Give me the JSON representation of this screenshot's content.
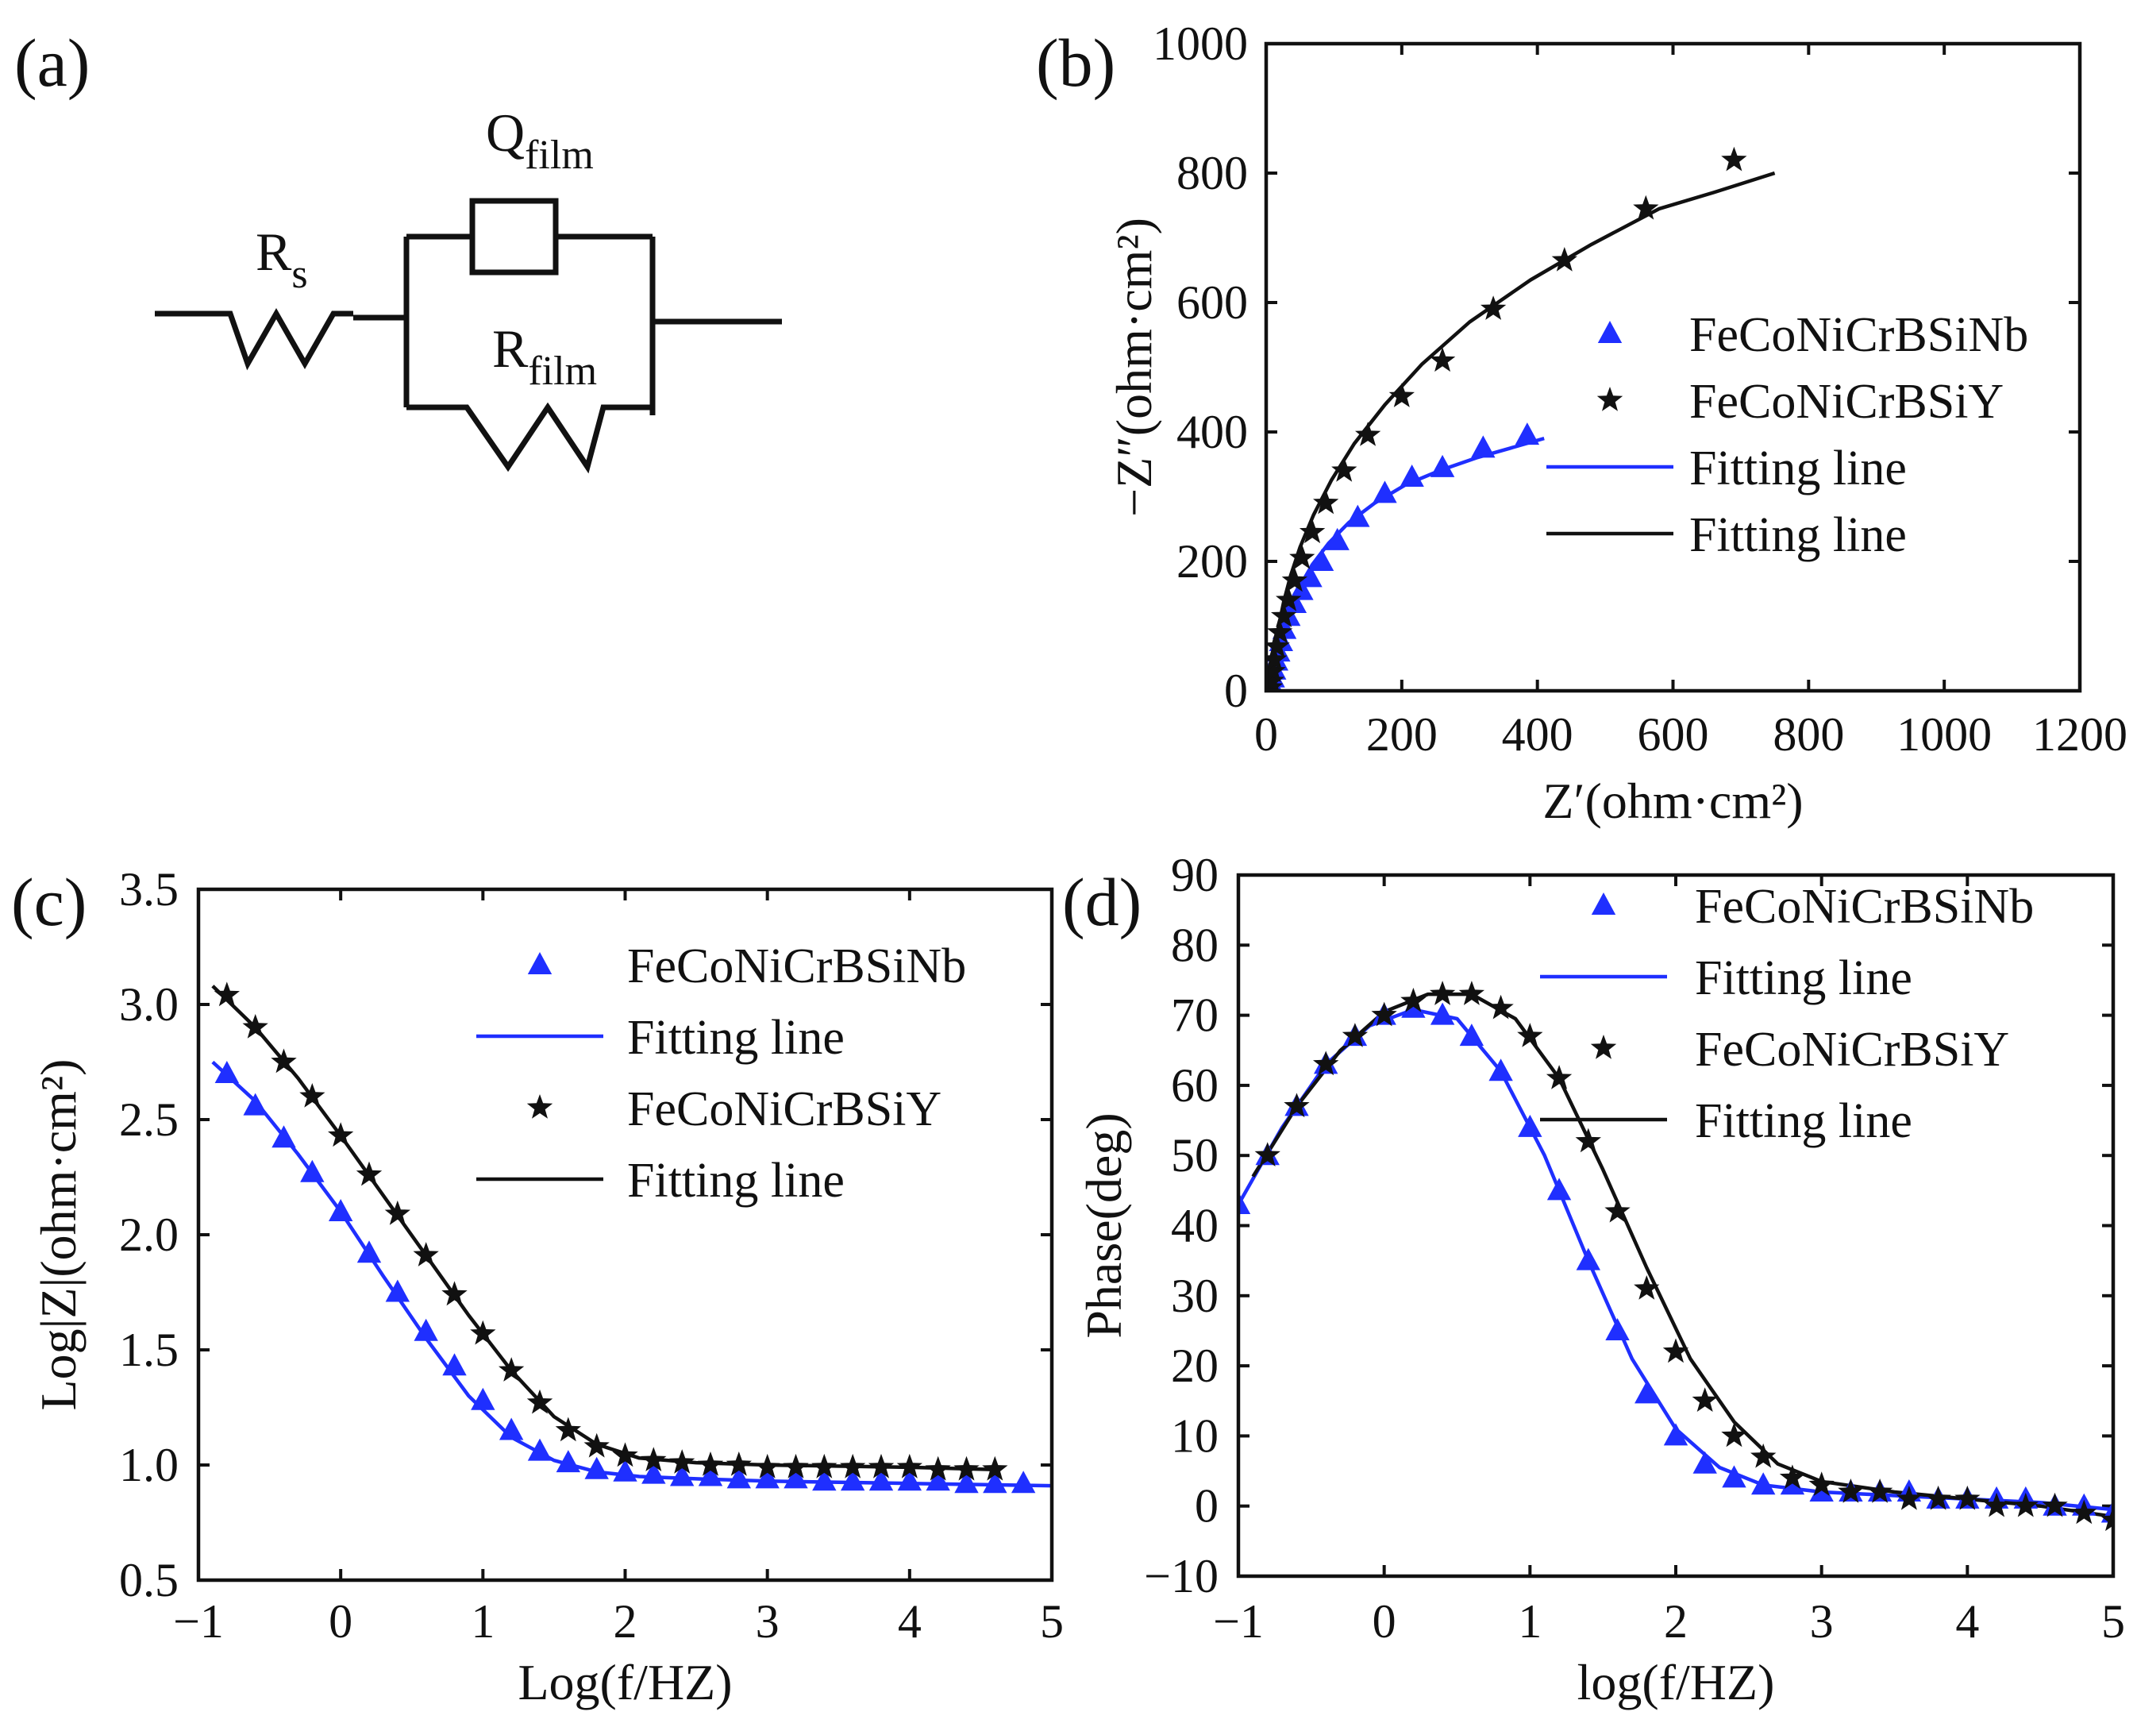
{
  "panels": {
    "a": {
      "label": "(a)",
      "circuit": {
        "rs": {
          "main": "R",
          "sub": "s"
        },
        "qfilm": {
          "main": "Q",
          "sub": "film"
        },
        "rfilm": {
          "main": "R",
          "sub": "film"
        }
      }
    },
    "b": {
      "label": "(b)"
    },
    "c": {
      "label": "(c)"
    },
    "d": {
      "label": "(d)"
    }
  },
  "colors": {
    "blue": "#1f2fff",
    "black": "#111111"
  },
  "chart_data": [
    {
      "id": "b",
      "type": "scatter",
      "title": "",
      "xlabel": "Z′(ohm·cm²)",
      "ylabel": "−Z″(ohm·cm²)",
      "xlim": [
        0,
        1200
      ],
      "ylim": [
        0,
        1000
      ],
      "xticks": [
        0,
        200,
        400,
        600,
        800,
        1000,
        1200
      ],
      "yticks": [
        0,
        200,
        400,
        600,
        800,
        1000
      ],
      "legend_position": "center-right",
      "legend": [
        "FeCoNiCrBSiNb",
        "FeCoNiCrBSiY",
        "Fitting line",
        "Fitting line"
      ],
      "series": [
        {
          "name": "FeCoNiCrBSiNb",
          "marker": "triangle",
          "color": "#1f2fff",
          "x": [
            6,
            8,
            10,
            12,
            15,
            18,
            22,
            27,
            33,
            42,
            52,
            65,
            82,
            105,
            135,
            175,
            215,
            260,
            320,
            385
          ],
          "y": [
            3,
            10,
            20,
            32,
            46,
            60,
            76,
            95,
            115,
            135,
            155,
            175,
            200,
            232,
            268,
            305,
            330,
            345,
            375,
            395
          ]
        },
        {
          "name": "FeCoNiCrBSiY",
          "marker": "star",
          "color": "#111111",
          "x": [
            6,
            8,
            10,
            12,
            16,
            20,
            26,
            33,
            42,
            53,
            68,
            88,
            115,
            150,
            200,
            260,
            335,
            440,
            560,
            690
          ],
          "y": [
            5,
            15,
            30,
            48,
            68,
            90,
            115,
            140,
            170,
            205,
            245,
            290,
            340,
            395,
            455,
            510,
            590,
            665,
            745,
            820
          ]
        },
        {
          "name": "Fitting line",
          "marker": "line",
          "color": "#1f2fff",
          "x": [
            5,
            8,
            12,
            18,
            26,
            36,
            50,
            68,
            92,
            122,
            160,
            205,
            255,
            310,
            360,
            410
          ],
          "y": [
            0,
            15,
            38,
            65,
            95,
            128,
            162,
            195,
            228,
            260,
            290,
            318,
            340,
            360,
            375,
            390
          ]
        },
        {
          "name": "Fitting line",
          "marker": "line",
          "color": "#111111",
          "x": [
            5,
            8,
            12,
            18,
            26,
            36,
            50,
            70,
            96,
            130,
            175,
            230,
            300,
            390,
            480,
            580,
            660,
            750
          ],
          "y": [
            0,
            25,
            60,
            98,
            138,
            178,
            222,
            272,
            325,
            382,
            442,
            505,
            570,
            635,
            690,
            745,
            770,
            800
          ]
        }
      ]
    },
    {
      "id": "c",
      "type": "scatter",
      "title": "",
      "xlabel": "Log(f/HZ)",
      "ylabel": "Log|Z|(ohm·cm²)",
      "xlim": [
        -1,
        5
      ],
      "ylim": [
        0.5,
        3.5
      ],
      "xticks": [
        -1,
        0,
        1,
        2,
        3,
        4,
        5
      ],
      "xticklabels": [
        "−1",
        "0",
        "1",
        "2",
        "3",
        "4",
        "5"
      ],
      "yticks": [
        0.5,
        1.0,
        1.5,
        2.0,
        2.5,
        3.0,
        3.5
      ],
      "yticklabels": [
        "0.5",
        "1.0",
        "1.5",
        "2.0",
        "2.5",
        "3.0",
        "3.5"
      ],
      "legend_position": "top-right",
      "legend": [
        "FeCoNiCrBSiNb",
        "Fitting line",
        "FeCoNiCrBSiY",
        "Fitting line"
      ],
      "series": [
        {
          "name": "FeCoNiCrBSiNb",
          "marker": "triangle",
          "color": "#1f2fff",
          "x": [
            -0.8,
            -0.6,
            -0.4,
            -0.2,
            0.0,
            0.2,
            0.4,
            0.6,
            0.8,
            1.0,
            1.2,
            1.4,
            1.6,
            1.8,
            2.0,
            2.2,
            2.4,
            2.6,
            2.8,
            3.0,
            3.2,
            3.4,
            3.6,
            3.8,
            4.0,
            4.2,
            4.4,
            4.6,
            4.8
          ],
          "y": [
            2.7,
            2.56,
            2.42,
            2.27,
            2.1,
            1.92,
            1.75,
            1.58,
            1.43,
            1.28,
            1.15,
            1.06,
            1.01,
            0.98,
            0.97,
            0.96,
            0.95,
            0.95,
            0.94,
            0.94,
            0.94,
            0.93,
            0.93,
            0.93,
            0.93,
            0.93,
            0.92,
            0.92,
            0.92
          ]
        },
        {
          "name": "Fitting line",
          "marker": "line",
          "color": "#1f2fff",
          "x": [
            -0.9,
            -0.6,
            -0.3,
            0.0,
            0.3,
            0.6,
            0.9,
            1.2,
            1.5,
            1.8,
            2.1,
            2.5,
            3.0,
            4.0,
            5.0
          ],
          "y": [
            2.75,
            2.58,
            2.35,
            2.1,
            1.82,
            1.55,
            1.3,
            1.12,
            1.02,
            0.97,
            0.95,
            0.94,
            0.93,
            0.92,
            0.91
          ]
        },
        {
          "name": "FeCoNiCrBSiY",
          "marker": "star",
          "color": "#111111",
          "x": [
            -0.8,
            -0.6,
            -0.4,
            -0.2,
            0.0,
            0.2,
            0.4,
            0.6,
            0.8,
            1.0,
            1.2,
            1.4,
            1.6,
            1.8,
            2.0,
            2.2,
            2.4,
            2.6,
            2.8,
            3.0,
            3.2,
            3.4,
            3.6,
            3.8,
            4.0,
            4.2,
            4.4,
            4.6
          ],
          "y": [
            3.04,
            2.9,
            2.75,
            2.6,
            2.43,
            2.26,
            2.09,
            1.91,
            1.74,
            1.57,
            1.41,
            1.27,
            1.15,
            1.08,
            1.04,
            1.02,
            1.01,
            1.0,
            1.0,
            0.99,
            0.99,
            0.99,
            0.99,
            0.99,
            0.99,
            0.98,
            0.98,
            0.98
          ]
        },
        {
          "name": "Fitting line",
          "marker": "line",
          "color": "#111111",
          "x": [
            -0.9,
            -0.6,
            -0.3,
            0.0,
            0.3,
            0.6,
            0.9,
            1.2,
            1.5,
            1.8,
            2.1,
            2.5,
            3.0,
            4.0,
            4.6
          ],
          "y": [
            3.08,
            2.9,
            2.68,
            2.43,
            2.17,
            1.91,
            1.65,
            1.41,
            1.21,
            1.09,
            1.03,
            1.01,
            1.0,
            0.99,
            0.98
          ]
        }
      ]
    },
    {
      "id": "d",
      "type": "scatter",
      "title": "",
      "xlabel": "log(f/HZ)",
      "ylabel": "Phase(deg)",
      "xlim": [
        -1,
        5
      ],
      "ylim": [
        -10,
        90
      ],
      "xticks": [
        -1,
        0,
        1,
        2,
        3,
        4,
        5
      ],
      "xticklabels": [
        "−1",
        "0",
        "1",
        "2",
        "3",
        "4",
        "5"
      ],
      "yticks": [
        -10,
        0,
        10,
        20,
        30,
        40,
        50,
        60,
        70,
        80,
        90
      ],
      "yticklabels": [
        "−10",
        "0",
        "10",
        "20",
        "30",
        "40",
        "50",
        "60",
        "70",
        "80",
        "90"
      ],
      "legend_position": "top-right",
      "legend": [
        "FeCoNiCrBSiNb",
        "Fitting line",
        "FeCoNiCrBSiY",
        "Fitting line"
      ],
      "series": [
        {
          "name": "FeCoNiCrBSiNb",
          "marker": "triangle",
          "color": "#1f2fff",
          "x": [
            -1.0,
            -0.8,
            -0.6,
            -0.4,
            -0.2,
            0.0,
            0.2,
            0.4,
            0.6,
            0.8,
            1.0,
            1.2,
            1.4,
            1.6,
            1.8,
            2.0,
            2.2,
            2.4,
            2.6,
            2.8,
            3.0,
            3.2,
            3.4,
            3.6,
            3.8,
            4.0,
            4.2,
            4.4,
            4.6,
            4.8,
            5.0
          ],
          "y": [
            43,
            50,
            57,
            63,
            67,
            70,
            71,
            70,
            67,
            62,
            54,
            45,
            35,
            25,
            16,
            10,
            6,
            4,
            3,
            3,
            2,
            2,
            2,
            2,
            1,
            1,
            1,
            1,
            0,
            0,
            -1
          ]
        },
        {
          "name": "Fitting line",
          "marker": "line",
          "color": "#1f2fff",
          "x": [
            -1.0,
            -0.7,
            -0.4,
            -0.1,
            0.2,
            0.5,
            0.8,
            1.1,
            1.4,
            1.7,
            2.0,
            2.3,
            2.6,
            3.0,
            3.5,
            4.0,
            4.5,
            5.0
          ],
          "y": [
            43,
            54,
            63,
            68.5,
            70.8,
            69.5,
            62,
            50,
            35,
            21,
            11,
            5.5,
            3,
            2,
            1.5,
            1,
            0.5,
            -0.5
          ]
        },
        {
          "name": "FeCoNiCrBSiY",
          "marker": "star",
          "color": "#111111",
          "x": [
            -0.8,
            -0.6,
            -0.4,
            -0.2,
            0.0,
            0.2,
            0.4,
            0.6,
            0.8,
            1.0,
            1.2,
            1.4,
            1.6,
            1.8,
            2.0,
            2.2,
            2.4,
            2.6,
            2.8,
            3.0,
            3.2,
            3.4,
            3.6,
            3.8,
            4.0,
            4.2,
            4.4,
            4.6,
            4.8,
            5.0
          ],
          "y": [
            50,
            57,
            63,
            67,
            70,
            72,
            73,
            73,
            71,
            67,
            61,
            52,
            42,
            31,
            22,
            15,
            10,
            7,
            4,
            3,
            2,
            2,
            1,
            1,
            1,
            0,
            0,
            0,
            -1,
            -2
          ]
        },
        {
          "name": "Fitting line",
          "marker": "line",
          "color": "#111111",
          "x": [
            -0.9,
            -0.6,
            -0.3,
            0.0,
            0.3,
            0.6,
            0.9,
            1.2,
            1.5,
            1.8,
            2.1,
            2.4,
            2.7,
            3.0,
            3.5,
            4.0,
            4.5,
            5.0
          ],
          "y": [
            47,
            57,
            65,
            70.5,
            73,
            73,
            69.5,
            61,
            48,
            34,
            21,
            12,
            6,
            3.5,
            2,
            1,
            0,
            -1.5
          ]
        }
      ]
    }
  ]
}
